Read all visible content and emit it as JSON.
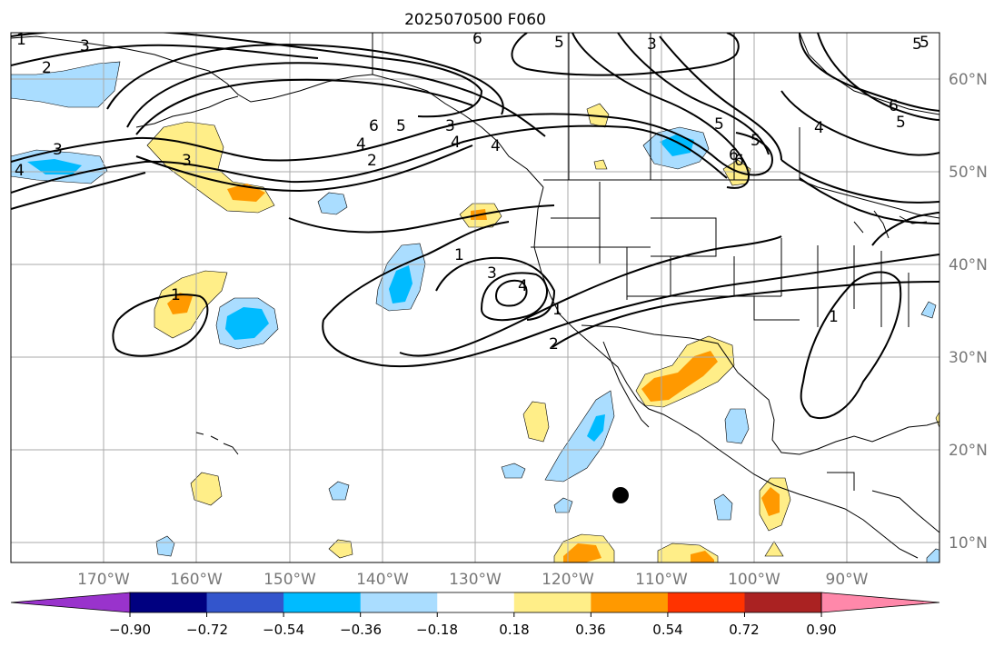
{
  "title": "2025070500 F060",
  "lon_labels": [
    "170°W",
    "160°W",
    "150°W",
    "140°W",
    "130°W",
    "120°W",
    "110°W",
    "100°W",
    "90°W"
  ],
  "lat_labels": [
    "60°N",
    "50°N",
    "40°N",
    "30°N",
    "20°N",
    "10°N"
  ],
  "colorbar": {
    "colors": [
      "#9933cc",
      "#000080",
      "#3355cc",
      "#00bbff",
      "#aaddff",
      "#ffffff",
      "#ffee88",
      "#ff9900",
      "#ff3300",
      "#aa2222",
      "#ff88aa"
    ],
    "tick_labels": [
      "−0.90",
      "−0.72",
      "−0.54",
      "−0.36",
      "−0.18",
      "0.18",
      "0.36",
      "0.54",
      "0.72",
      "0.90"
    ]
  },
  "contour_labels": [
    "1",
    "2",
    "3",
    "4",
    "5",
    "6",
    "1",
    "2",
    "3",
    "4",
    "5",
    "6",
    "5",
    "6",
    "5",
    "3",
    "4",
    "5",
    "6",
    "3",
    "4",
    "5",
    "6",
    "2",
    "3",
    "4",
    "5",
    "3",
    "4",
    "1",
    "1",
    "1"
  ],
  "colors": {
    "light_blue": "#aaddff",
    "blue": "#00bbff",
    "yellow": "#ffee88",
    "orange": "#ff9900",
    "grid": "#aaaaaa",
    "contour": "#000000",
    "axis_text": "#777777"
  },
  "marker": "black-dot"
}
